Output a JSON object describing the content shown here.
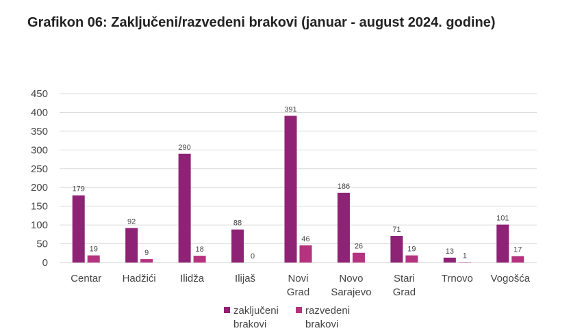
{
  "title": "Grafikon 06: Zaključeni/razvedeni brakovi (januar - august 2024. godine)",
  "chart_data": {
    "type": "bar",
    "categories": [
      [
        "Centar"
      ],
      [
        "Hadžići"
      ],
      [
        "Ilidža"
      ],
      [
        "Ilijaš"
      ],
      [
        "Novi",
        "Grad"
      ],
      [
        "Novo",
        "Sarajevo"
      ],
      [
        "Stari",
        "Grad"
      ],
      [
        "Trnovo"
      ],
      [
        "Vogošća"
      ]
    ],
    "series": [
      {
        "name": [
          "zaključeni",
          "brakovi"
        ],
        "color": "#8e2274",
        "values": [
          179,
          92,
          290,
          88,
          391,
          186,
          71,
          13,
          101
        ]
      },
      {
        "name": [
          "razvedeni",
          "brakovi"
        ],
        "color": "#b5327f",
        "values": [
          19,
          9,
          18,
          0,
          46,
          26,
          19,
          1,
          17
        ]
      }
    ],
    "ylim": [
      0,
      450
    ],
    "yticks": [
      0,
      50,
      100,
      150,
      200,
      250,
      300,
      350,
      400,
      450
    ],
    "grid": true,
    "legend": "bottom"
  }
}
